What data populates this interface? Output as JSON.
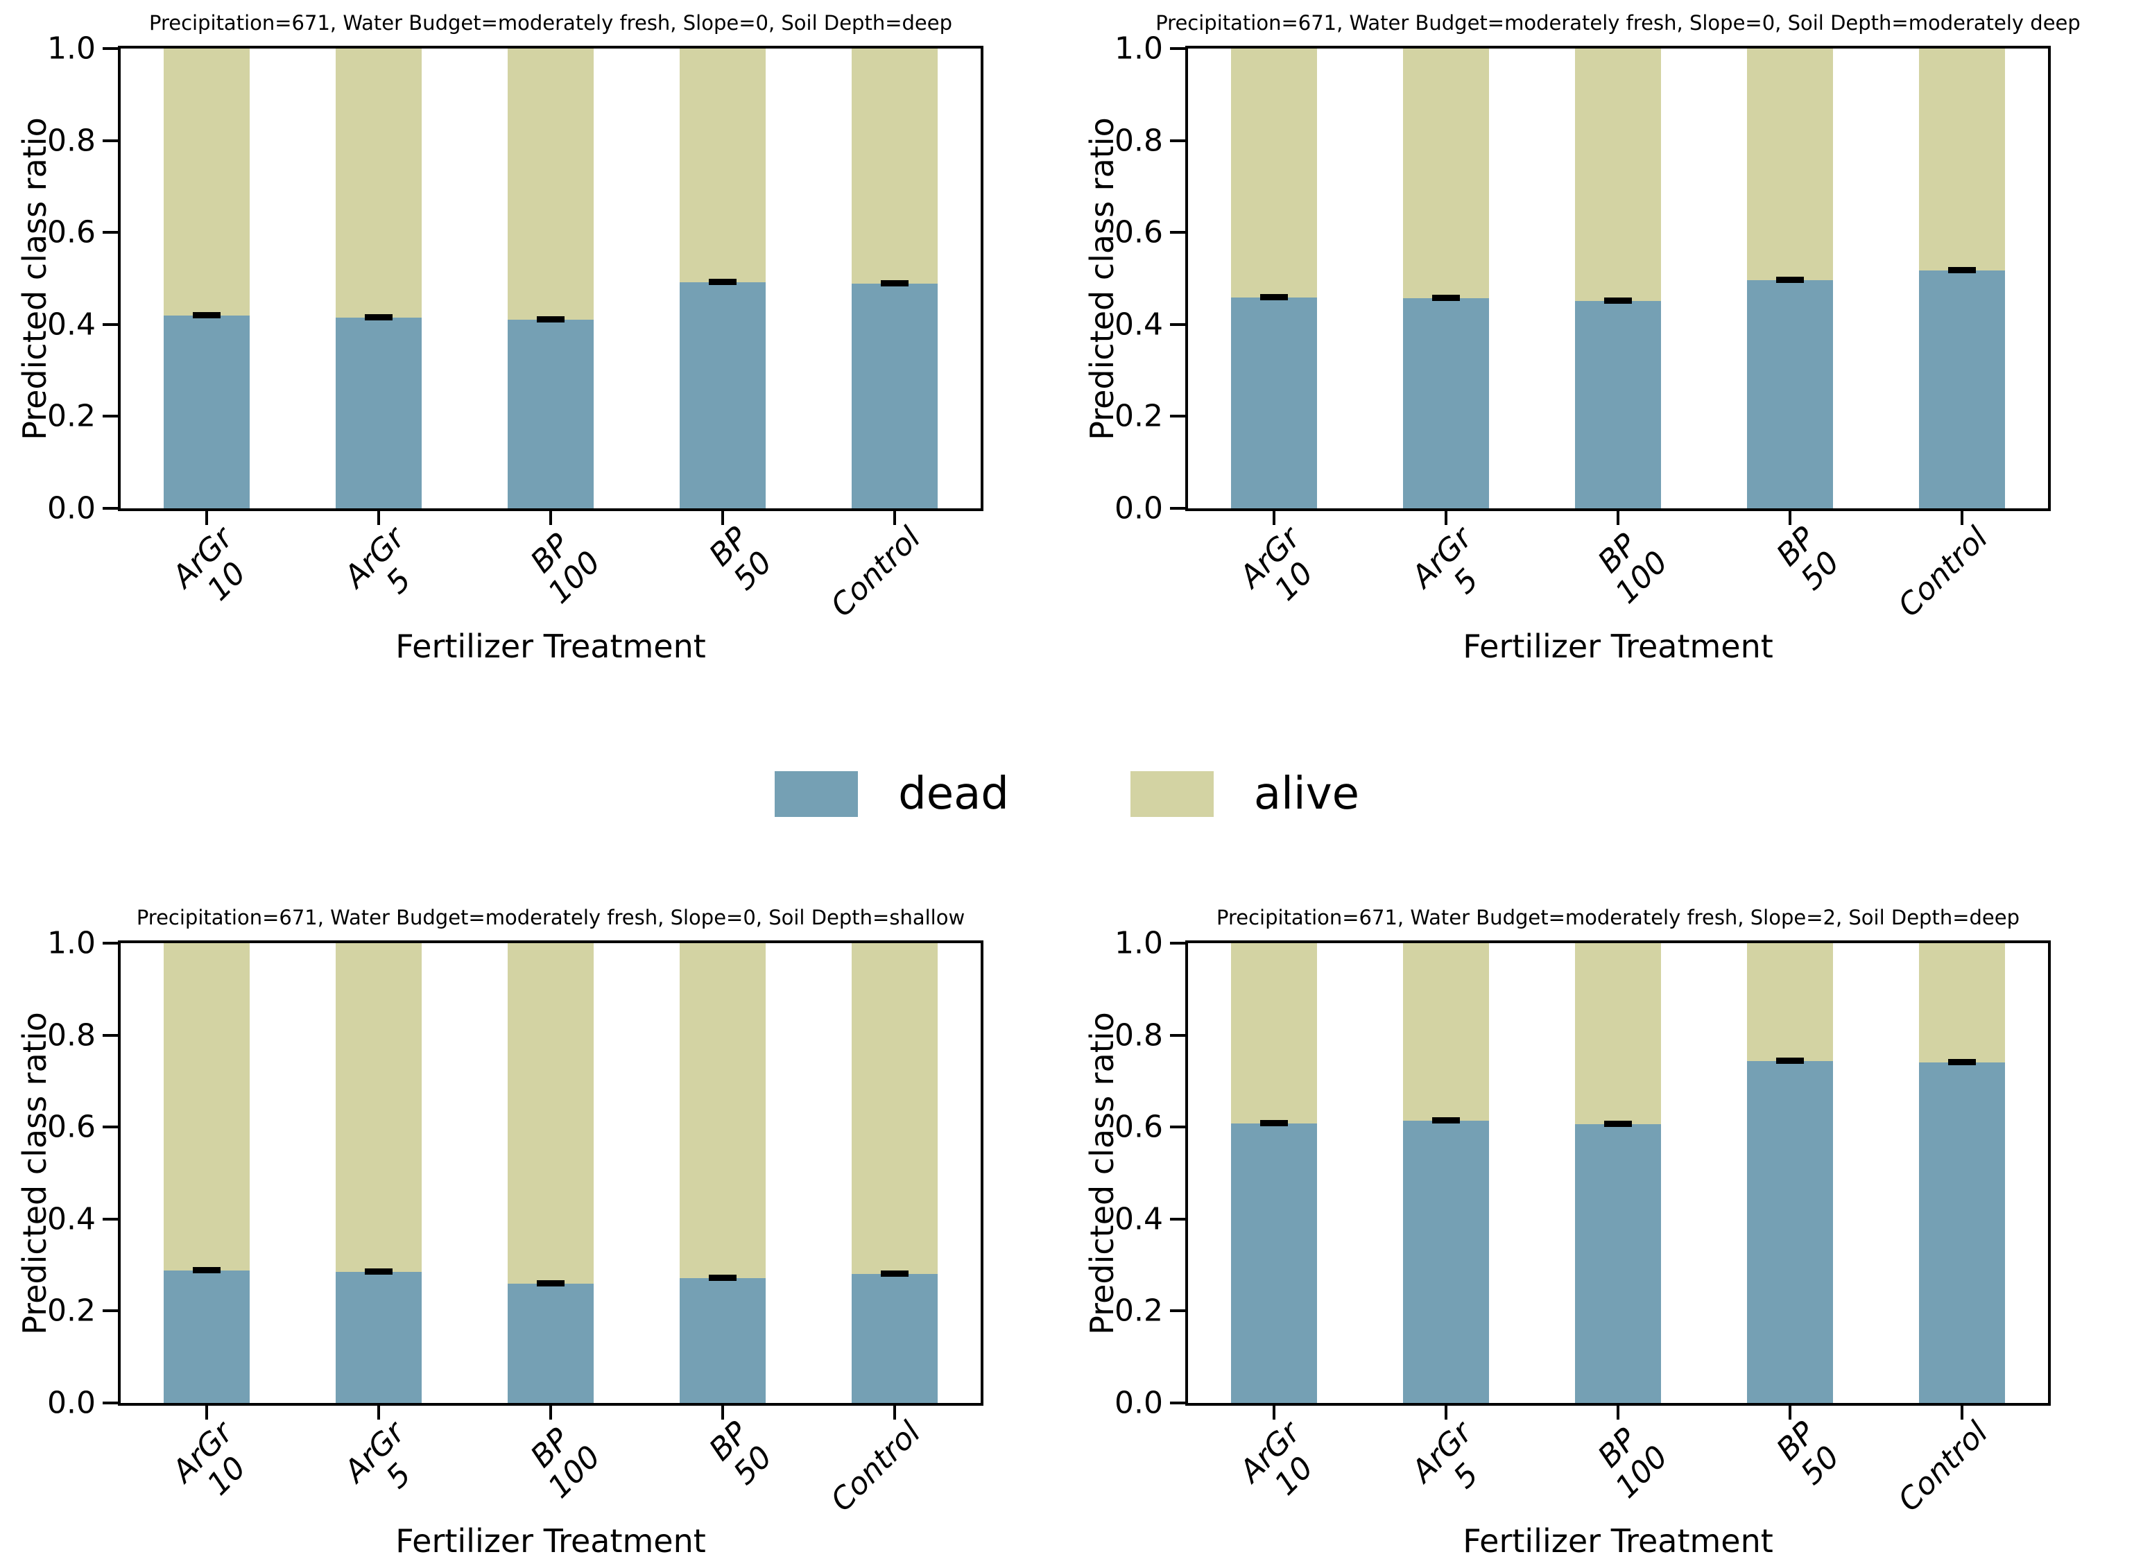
{
  "legend": {
    "position": "center between subplot rows",
    "items": [
      {
        "label": "dead",
        "color": "#75a0b4"
      },
      {
        "label": "alive",
        "color": "#d3d3a3"
      }
    ]
  },
  "axes": {
    "ylabel": "Predicted class ratio",
    "xlabel": "Fertilizer Treatment",
    "yticks": [
      "0.0",
      "0.2",
      "0.4",
      "0.6",
      "0.8",
      "1.0"
    ],
    "xtick_labels": [
      [
        "ArGr",
        "10"
      ],
      [
        "ArGr",
        "5"
      ],
      [
        "BP",
        "100"
      ],
      [
        "BP",
        "50"
      ],
      [
        "Control"
      ]
    ]
  },
  "chart_data": [
    {
      "type": "bar",
      "stacked": true,
      "title": "Precipitation=671, Water Budget=moderately fresh, Slope=0, Soil Depth=deep",
      "categories": [
        "ArGr 10",
        "ArGr 5",
        "BP 100",
        "BP 50",
        "Control"
      ],
      "series": [
        {
          "name": "dead",
          "color": "#75a0b4",
          "values": [
            0.42,
            0.415,
            0.41,
            0.491,
            0.488
          ],
          "errors": [
            0.005,
            0.005,
            0.005,
            0.004,
            0.004
          ]
        },
        {
          "name": "alive",
          "color": "#d3d3a3",
          "values": [
            0.58,
            0.585,
            0.59,
            0.509,
            0.512
          ]
        }
      ],
      "xlabel": "Fertilizer Treatment",
      "ylabel": "Predicted class ratio",
      "ylim": [
        0.0,
        1.0
      ],
      "grid": false
    },
    {
      "type": "bar",
      "stacked": true,
      "title": "Precipitation=671, Water Budget=moderately fresh, Slope=0, Soil Depth=moderately deep",
      "categories": [
        "ArGr 10",
        "ArGr 5",
        "BP 100",
        "BP 50",
        "Control"
      ],
      "series": [
        {
          "name": "dead",
          "color": "#75a0b4",
          "values": [
            0.459,
            0.457,
            0.451,
            0.496,
            0.517
          ],
          "errors": [
            0.005,
            0.005,
            0.004,
            0.004,
            0.004
          ]
        },
        {
          "name": "alive",
          "color": "#d3d3a3",
          "values": [
            0.541,
            0.543,
            0.549,
            0.504,
            0.483
          ]
        }
      ],
      "xlabel": "Fertilizer Treatment",
      "ylabel": "Predicted class ratio",
      "ylim": [
        0.0,
        1.0
      ],
      "grid": false
    },
    {
      "type": "bar",
      "stacked": true,
      "title": "Precipitation=671, Water Budget=moderately fresh, Slope=0, Soil Depth=shallow",
      "categories": [
        "ArGr 10",
        "ArGr 5",
        "BP 100",
        "BP 50",
        "Control"
      ],
      "series": [
        {
          "name": "dead",
          "color": "#75a0b4",
          "values": [
            0.288,
            0.285,
            0.259,
            0.272,
            0.281
          ],
          "errors": [
            0.005,
            0.005,
            0.004,
            0.005,
            0.005
          ]
        },
        {
          "name": "alive",
          "color": "#d3d3a3",
          "values": [
            0.712,
            0.715,
            0.741,
            0.728,
            0.719
          ]
        }
      ],
      "xlabel": "Fertilizer Treatment",
      "ylabel": "Predicted class ratio",
      "ylim": [
        0.0,
        1.0
      ],
      "grid": false
    },
    {
      "type": "bar",
      "stacked": true,
      "title": "Precipitation=671, Water Budget=moderately fresh, Slope=2, Soil Depth=deep",
      "categories": [
        "ArGr 10",
        "ArGr 5",
        "BP 100",
        "BP 50",
        "Control"
      ],
      "series": [
        {
          "name": "dead",
          "color": "#75a0b4",
          "values": [
            0.608,
            0.614,
            0.606,
            0.744,
            0.74
          ],
          "errors": [
            0.004,
            0.005,
            0.004,
            0.004,
            0.004
          ]
        },
        {
          "name": "alive",
          "color": "#d3d3a3",
          "values": [
            0.392,
            0.386,
            0.394,
            0.256,
            0.26
          ]
        }
      ],
      "xlabel": "Fertilizer Treatment",
      "ylabel": "Predicted class ratio",
      "ylim": [
        0.0,
        1.0
      ],
      "grid": false
    }
  ]
}
